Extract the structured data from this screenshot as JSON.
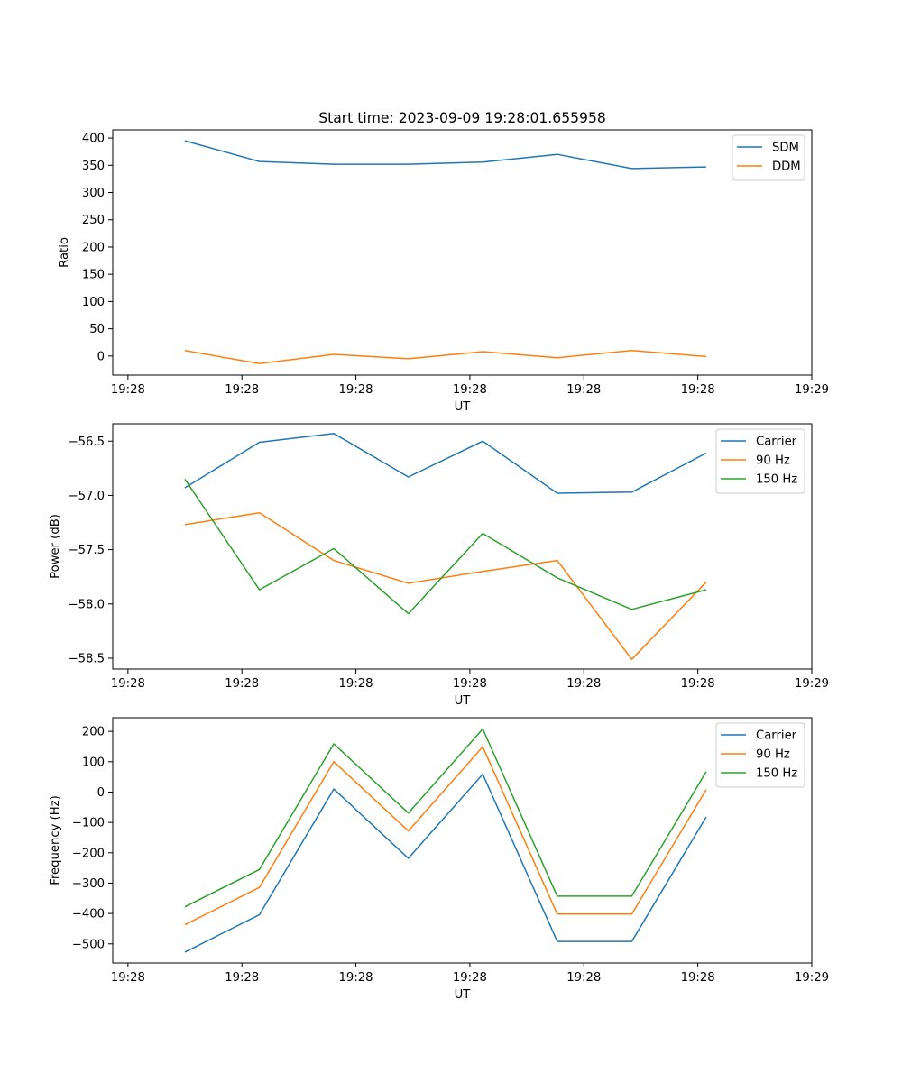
{
  "colors": {
    "blue": "#1f77b4",
    "orange": "#ff7f0e",
    "green": "#2ca02c"
  },
  "chart_data": [
    {
      "type": "line",
      "title": "Start time: 2023-09-09 19:28:01.655958",
      "xlabel": "UT",
      "ylabel": "Ratio",
      "xlim": [
        -0.2,
        9.0
      ],
      "ylim": [
        -35,
        415
      ],
      "xticks": [
        {
          "x": 0,
          "label": "19:28"
        },
        {
          "x": 1.5,
          "label": "19:28"
        },
        {
          "x": 3,
          "label": "19:28"
        },
        {
          "x": 4.5,
          "label": "19:28"
        },
        {
          "x": 6,
          "label": "19:28"
        },
        {
          "x": 7.5,
          "label": "19:28"
        },
        {
          "x": 9,
          "label": "19:29"
        }
      ],
      "yticks": [
        {
          "v": 0,
          "label": "0"
        },
        {
          "v": 50,
          "label": "50"
        },
        {
          "v": 100,
          "label": "100"
        },
        {
          "v": 150,
          "label": "150"
        },
        {
          "v": 200,
          "label": "200"
        },
        {
          "v": 250,
          "label": "250"
        },
        {
          "v": 300,
          "label": "300"
        },
        {
          "v": 350,
          "label": "350"
        },
        {
          "v": 400,
          "label": "400"
        }
      ],
      "x": [
        0.75,
        1.73,
        2.71,
        3.69,
        4.67,
        5.65,
        6.63,
        7.61
      ],
      "legend_position": "top-right",
      "series": [
        {
          "name": "SDM",
          "color": "#1f77b4",
          "values": [
            395,
            357,
            352,
            352,
            356,
            370,
            344,
            347
          ]
        },
        {
          "name": "DDM",
          "color": "#ff7f0e",
          "values": [
            10,
            -14,
            3,
            -5,
            8,
            -3,
            10,
            -1
          ]
        }
      ]
    },
    {
      "type": "line",
      "title": "",
      "xlabel": "UT",
      "ylabel": "Power (dB)",
      "xlim": [
        -0.2,
        9.0
      ],
      "ylim": [
        -58.6,
        -56.34
      ],
      "xticks": [
        {
          "x": 0,
          "label": "19:28"
        },
        {
          "x": 1.5,
          "label": "19:28"
        },
        {
          "x": 3,
          "label": "19:28"
        },
        {
          "x": 4.5,
          "label": "19:28"
        },
        {
          "x": 6,
          "label": "19:28"
        },
        {
          "x": 7.5,
          "label": "19:28"
        },
        {
          "x": 9,
          "label": "19:29"
        }
      ],
      "yticks": [
        {
          "v": -56.5,
          "label": "−56.5"
        },
        {
          "v": -57.0,
          "label": "−57.0"
        },
        {
          "v": -57.5,
          "label": "−57.5"
        },
        {
          "v": -58.0,
          "label": "−58.0"
        },
        {
          "v": -58.5,
          "label": "−58.5"
        }
      ],
      "x": [
        0.75,
        1.73,
        2.71,
        3.69,
        4.67,
        5.65,
        6.63,
        7.61
      ],
      "legend_position": "top-right",
      "series": [
        {
          "name": "Carrier",
          "color": "#1f77b4",
          "values": [
            -56.93,
            -56.51,
            -56.43,
            -56.83,
            -56.5,
            -56.98,
            -56.97,
            -56.61
          ]
        },
        {
          "name": "90 Hz",
          "color": "#ff7f0e",
          "values": [
            -57.27,
            -57.16,
            -57.6,
            -57.81,
            -57.7,
            -57.6,
            -58.51,
            -57.8
          ]
        },
        {
          "name": "150 Hz",
          "color": "#2ca02c",
          "values": [
            -56.85,
            -57.87,
            -57.49,
            -58.09,
            -57.35,
            -57.76,
            -58.05,
            -57.87
          ]
        }
      ]
    },
    {
      "type": "line",
      "title": "",
      "xlabel": "UT",
      "ylabel": "Frequency (Hz)",
      "xlim": [
        -0.2,
        9.0
      ],
      "ylim": [
        -563,
        245
      ],
      "xticks": [
        {
          "x": 0,
          "label": "19:28"
        },
        {
          "x": 1.5,
          "label": "19:28"
        },
        {
          "x": 3,
          "label": "19:28"
        },
        {
          "x": 4.5,
          "label": "19:28"
        },
        {
          "x": 6,
          "label": "19:28"
        },
        {
          "x": 7.5,
          "label": "19:28"
        },
        {
          "x": 9,
          "label": "19:29"
        }
      ],
      "yticks": [
        {
          "v": 200,
          "label": "200"
        },
        {
          "v": 100,
          "label": "100"
        },
        {
          "v": 0,
          "label": "0"
        },
        {
          "v": -100,
          "label": "−100"
        },
        {
          "v": -200,
          "label": "−200"
        },
        {
          "v": -300,
          "label": "−300"
        },
        {
          "v": -400,
          "label": "−400"
        },
        {
          "v": -500,
          "label": "−500"
        }
      ],
      "x": [
        0.75,
        1.73,
        2.71,
        3.69,
        4.67,
        5.65,
        6.63,
        7.61
      ],
      "legend_position": "top-right",
      "series": [
        {
          "name": "Carrier",
          "color": "#1f77b4",
          "values": [
            -527,
            -404,
            10,
            -218,
            59,
            -492,
            -492,
            -82
          ]
        },
        {
          "name": "90 Hz",
          "color": "#ff7f0e",
          "values": [
            -437,
            -314,
            100,
            -128,
            149,
            -402,
            -402,
            8
          ]
        },
        {
          "name": "150 Hz",
          "color": "#2ca02c",
          "values": [
            -378,
            -255,
            159,
            -69,
            208,
            -343,
            -343,
            67
          ]
        }
      ]
    }
  ]
}
